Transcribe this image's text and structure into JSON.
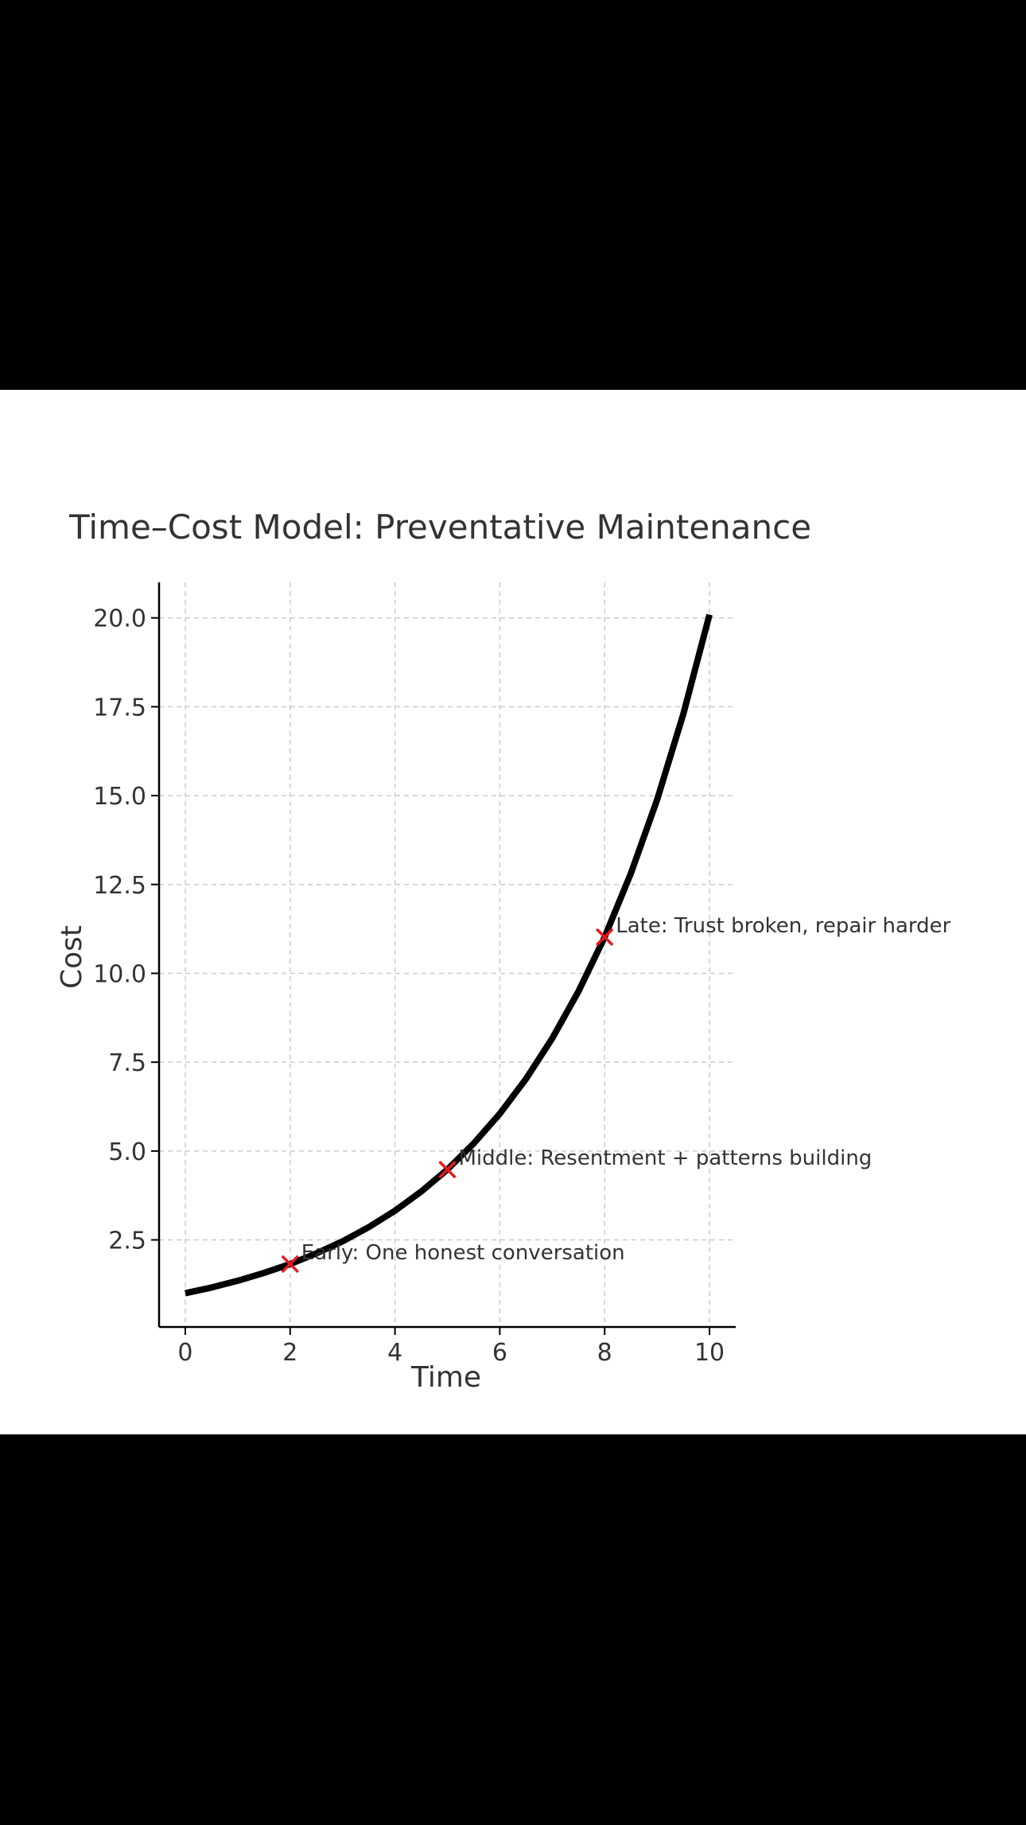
{
  "chart_data": {
    "type": "line",
    "title": "Time–Cost Model: Preventative Maintenance",
    "xlabel": "Time",
    "ylabel": "Cost",
    "xlim": [
      -0.5,
      10.5
    ],
    "ylim": [
      0.05,
      21.0
    ],
    "xticks": [
      0,
      2,
      4,
      6,
      8,
      10
    ],
    "xtick_labels": [
      "0",
      "2",
      "4",
      "6",
      "8",
      "10"
    ],
    "yticks": [
      2.5,
      5.0,
      7.5,
      10.0,
      12.5,
      15.0,
      17.5,
      20.0
    ],
    "ytick_labels": [
      "2.5",
      "5.0",
      "7.5",
      "10.0",
      "12.5",
      "15.0",
      "17.5",
      "20.0"
    ],
    "grid": true,
    "series": [
      {
        "x": [
          0,
          0.5,
          1,
          1.5,
          2,
          2.5,
          3,
          3.5,
          4,
          4.5,
          5,
          5.5,
          6,
          6.5,
          7,
          7.5,
          8,
          8.5,
          9,
          9.5,
          10
        ],
        "values": [
          1.0,
          1.16,
          1.35,
          1.57,
          1.82,
          2.12,
          2.46,
          2.86,
          3.32,
          3.86,
          4.48,
          5.21,
          6.05,
          7.03,
          8.17,
          9.49,
          11.02,
          12.81,
          14.88,
          17.29,
          20.09
        ],
        "color": "#000000"
      }
    ],
    "markers": [
      {
        "x": 2,
        "y": 1.82,
        "color": "#e41a1c"
      },
      {
        "x": 5,
        "y": 4.48,
        "color": "#e41a1c"
      },
      {
        "x": 8,
        "y": 11.02,
        "color": "#e41a1c"
      }
    ],
    "annotations": [
      {
        "x": 2,
        "y": 1.82,
        "text": "Early: One honest conversation"
      },
      {
        "x": 5,
        "y": 4.48,
        "text": "Middle: Resentment + patterns building"
      },
      {
        "x": 8,
        "y": 11.02,
        "text": "Late: Trust broken, repair harder"
      }
    ]
  }
}
